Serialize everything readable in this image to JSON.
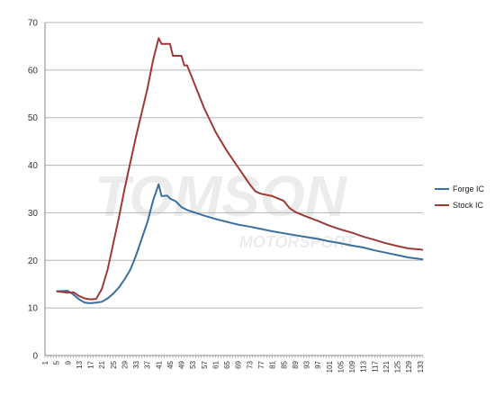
{
  "chart_data": {
    "type": "line",
    "title": "",
    "xlabel": "",
    "ylabel": "",
    "ylim": [
      0,
      70
    ],
    "yticks": [
      0,
      10,
      20,
      30,
      40,
      50,
      60,
      70
    ],
    "grid": "horizontal",
    "legend_placement": "right",
    "x_first": 1,
    "x_last": 134,
    "x_tick_labels": [
      "1",
      "5",
      "9",
      "13",
      "17",
      "21",
      "25",
      "29",
      "33",
      "37",
      "41",
      "45",
      "49",
      "53",
      "57",
      "61",
      "65",
      "69",
      "73",
      "77",
      "81",
      "85",
      "89",
      "93",
      "97",
      "101",
      "105",
      "109",
      "113",
      "117",
      "121",
      "125",
      "129",
      "133"
    ],
    "series": [
      {
        "name": "Forge IC",
        "color": "#3a6f9f",
        "points": [
          [
            5,
            13.5
          ],
          [
            9,
            13.6
          ],
          [
            11,
            12.8
          ],
          [
            13,
            11.8
          ],
          [
            15,
            11.1
          ],
          [
            17,
            11.0
          ],
          [
            19,
            11.1
          ],
          [
            21,
            11.3
          ],
          [
            23,
            12.0
          ],
          [
            25,
            13.0
          ],
          [
            27,
            14.3
          ],
          [
            29,
            16.0
          ],
          [
            31,
            18.0
          ],
          [
            33,
            21.0
          ],
          [
            35,
            24.5
          ],
          [
            37,
            28.0
          ],
          [
            39,
            32.5
          ],
          [
            41,
            36.0
          ],
          [
            42,
            33.5
          ],
          [
            44,
            33.6
          ],
          [
            45,
            33.0
          ],
          [
            47,
            32.4
          ],
          [
            49,
            31.2
          ],
          [
            51,
            30.6
          ],
          [
            53,
            30.2
          ],
          [
            57,
            29.4
          ],
          [
            61,
            28.7
          ],
          [
            65,
            28.1
          ],
          [
            69,
            27.5
          ],
          [
            73,
            27.1
          ],
          [
            77,
            26.6
          ],
          [
            81,
            26.1
          ],
          [
            85,
            25.7
          ],
          [
            89,
            25.3
          ],
          [
            93,
            24.9
          ],
          [
            97,
            24.5
          ],
          [
            101,
            24.0
          ],
          [
            105,
            23.6
          ],
          [
            109,
            23.1
          ],
          [
            113,
            22.7
          ],
          [
            117,
            22.1
          ],
          [
            121,
            21.6
          ],
          [
            125,
            21.1
          ],
          [
            129,
            20.6
          ],
          [
            133,
            20.3
          ],
          [
            134,
            20.2
          ]
        ]
      },
      {
        "name": "Stock IC",
        "color": "#9e3a36",
        "points": [
          [
            5,
            13.5
          ],
          [
            9,
            13.2
          ],
          [
            11,
            13.3
          ],
          [
            13,
            12.5
          ],
          [
            15,
            12.0
          ],
          [
            17,
            11.8
          ],
          [
            19,
            11.9
          ],
          [
            21,
            14.0
          ],
          [
            23,
            18.0
          ],
          [
            25,
            23.5
          ],
          [
            27,
            29.0
          ],
          [
            29,
            35.0
          ],
          [
            31,
            40.5
          ],
          [
            33,
            46.0
          ],
          [
            35,
            51.0
          ],
          [
            37,
            56.0
          ],
          [
            39,
            62.0
          ],
          [
            41,
            66.7
          ],
          [
            42,
            65.5
          ],
          [
            45,
            65.5
          ],
          [
            46,
            63.0
          ],
          [
            49,
            63.0
          ],
          [
            50,
            61.0
          ],
          [
            51,
            61.0
          ],
          [
            53,
            58.0
          ],
          [
            57,
            52.0
          ],
          [
            61,
            47.0
          ],
          [
            65,
            43.0
          ],
          [
            69,
            39.5
          ],
          [
            73,
            36.0
          ],
          [
            75,
            34.5
          ],
          [
            77,
            34.0
          ],
          [
            81,
            33.5
          ],
          [
            85,
            32.5
          ],
          [
            87,
            31.0
          ],
          [
            89,
            30.2
          ],
          [
            93,
            29.2
          ],
          [
            97,
            28.3
          ],
          [
            101,
            27.3
          ],
          [
            105,
            26.5
          ],
          [
            109,
            25.8
          ],
          [
            113,
            25.0
          ],
          [
            117,
            24.3
          ],
          [
            121,
            23.6
          ],
          [
            125,
            23.0
          ],
          [
            129,
            22.5
          ],
          [
            133,
            22.3
          ],
          [
            134,
            22.2
          ]
        ]
      }
    ]
  }
}
